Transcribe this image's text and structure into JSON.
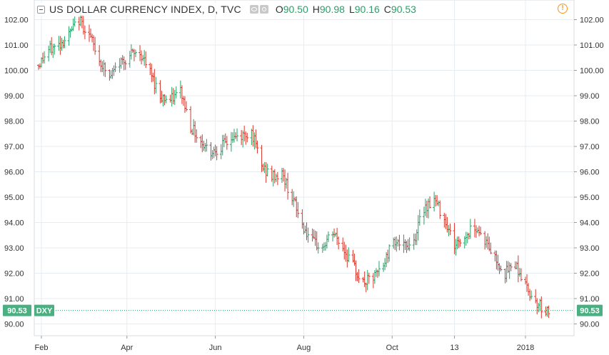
{
  "legend": {
    "title": "US DOLLAR CURRENCY INDEX, D, TVC",
    "open_key": "O",
    "open": "90.50",
    "high_key": "H",
    "high": "90.98",
    "low_key": "L",
    "low": "90.16",
    "close_key": "C",
    "close": "90.53",
    "alert_glyph": "!"
  },
  "colors": {
    "up": "#26a269",
    "down": "#d9362b",
    "grid": "#e6ecf1",
    "price_line": "#26a269",
    "badge": "#4bb081"
  },
  "price_badge": {
    "value": "90.53",
    "symbol": "DXY"
  },
  "chart_data": {
    "type": "ohlc",
    "title": "US DOLLAR CURRENCY INDEX, D, TVC",
    "symbol": "DXY",
    "ylim": [
      89.7,
      102.6
    ],
    "y_ticks": [
      "90.00",
      "91.00",
      "92.00",
      "93.00",
      "94.00",
      "95.00",
      "96.00",
      "97.00",
      "98.00",
      "99.00",
      "100.00",
      "101.00",
      "102.00"
    ],
    "x_ticks": [
      "Feb",
      "Apr",
      "Jun",
      "Aug",
      "Oct",
      "13",
      "2018"
    ],
    "grid": true,
    "last_close": 90.53,
    "series": [
      {
        "x": "2017-01-30",
        "y": 100.2
      },
      {
        "x": "2017-02-06",
        "y": 100.8
      },
      {
        "x": "2017-02-13",
        "y": 101.0
      },
      {
        "x": "2017-02-20",
        "y": 101.4
      },
      {
        "x": "2017-02-27",
        "y": 102.0
      },
      {
        "x": "2017-03-06",
        "y": 101.4
      },
      {
        "x": "2017-03-13",
        "y": 100.4
      },
      {
        "x": "2017-03-20",
        "y": 99.7
      },
      {
        "x": "2017-03-27",
        "y": 100.3
      },
      {
        "x": "2017-04-03",
        "y": 100.6
      },
      {
        "x": "2017-04-10",
        "y": 100.7
      },
      {
        "x": "2017-04-17",
        "y": 99.9
      },
      {
        "x": "2017-04-24",
        "y": 99.0
      },
      {
        "x": "2017-05-01",
        "y": 98.8
      },
      {
        "x": "2017-05-08",
        "y": 99.2
      },
      {
        "x": "2017-05-15",
        "y": 97.8
      },
      {
        "x": "2017-05-22",
        "y": 97.2
      },
      {
        "x": "2017-05-29",
        "y": 96.8
      },
      {
        "x": "2017-06-05",
        "y": 97.0
      },
      {
        "x": "2017-06-12",
        "y": 97.3
      },
      {
        "x": "2017-06-19",
        "y": 97.4
      },
      {
        "x": "2017-06-26",
        "y": 97.6
      },
      {
        "x": "2017-07-03",
        "y": 96.2
      },
      {
        "x": "2017-07-10",
        "y": 95.8
      },
      {
        "x": "2017-07-17",
        "y": 95.9
      },
      {
        "x": "2017-07-24",
        "y": 95.0
      },
      {
        "x": "2017-07-31",
        "y": 93.9
      },
      {
        "x": "2017-08-07",
        "y": 93.2
      },
      {
        "x": "2017-08-14",
        "y": 93.0
      },
      {
        "x": "2017-08-21",
        "y": 93.6
      },
      {
        "x": "2017-08-28",
        "y": 93.0
      },
      {
        "x": "2017-09-04",
        "y": 92.3
      },
      {
        "x": "2017-09-11",
        "y": 91.6
      },
      {
        "x": "2017-09-18",
        "y": 91.8
      },
      {
        "x": "2017-09-25",
        "y": 92.3
      },
      {
        "x": "2017-10-02",
        "y": 93.4
      },
      {
        "x": "2017-10-09",
        "y": 93.0
      },
      {
        "x": "2017-10-16",
        "y": 93.3
      },
      {
        "x": "2017-10-23",
        "y": 94.6
      },
      {
        "x": "2017-10-30",
        "y": 94.9
      },
      {
        "x": "2017-11-06",
        "y": 94.2
      },
      {
        "x": "2017-11-13",
        "y": 93.1
      },
      {
        "x": "2017-11-20",
        "y": 93.4
      },
      {
        "x": "2017-11-27",
        "y": 93.9
      },
      {
        "x": "2017-12-04",
        "y": 93.3
      },
      {
        "x": "2017-12-11",
        "y": 92.6
      },
      {
        "x": "2017-12-18",
        "y": 92.0
      },
      {
        "x": "2017-12-25",
        "y": 92.4
      },
      {
        "x": "2018-01-01",
        "y": 91.5
      },
      {
        "x": "2018-01-08",
        "y": 90.9
      },
      {
        "x": "2018-01-15",
        "y": 90.53
      }
    ]
  }
}
